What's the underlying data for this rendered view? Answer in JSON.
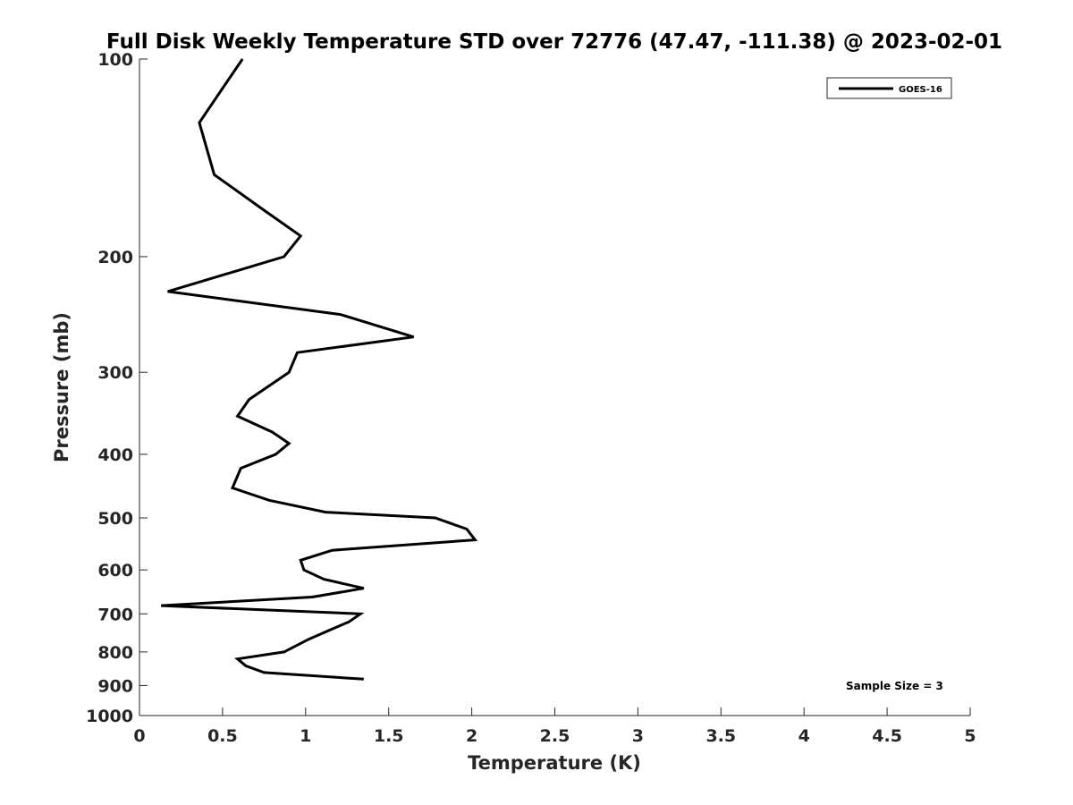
{
  "chart_data": {
    "type": "line",
    "title": "Full Disk Weekly Temperature STD over 72776 (47.47, -111.38) @ 2023-02-01",
    "xlabel": "Temperature (K)",
    "ylabel": "Pressure (mb)",
    "xlim": [
      0,
      5
    ],
    "ylim": [
      100,
      1000
    ],
    "y_scale": "log",
    "y_reversed": true,
    "grid": false,
    "x_ticks": [
      "0",
      "0.5",
      "1",
      "1.5",
      "2",
      "2.5",
      "3",
      "3.5",
      "4",
      "4.5",
      "5"
    ],
    "y_ticks": [
      "100",
      "200",
      "300",
      "400",
      "500",
      "600",
      "700",
      "800",
      "900",
      "1000"
    ],
    "legend_position": "top-right",
    "series": [
      {
        "name": "GOES-16",
        "color": "#000000",
        "x": [
          0.62,
          0.36,
          0.45,
          0.75,
          0.97,
          0.87,
          0.17,
          1.21,
          1.65,
          0.95,
          0.9,
          0.66,
          0.59,
          0.8,
          0.9,
          0.82,
          0.61,
          0.56,
          0.78,
          1.12,
          1.78,
          1.97,
          2.02,
          1.16,
          0.97,
          0.99,
          1.11,
          1.35,
          1.04,
          0.13,
          1.33,
          1.26,
          1.15,
          1.02,
          0.87,
          0.59,
          0.64,
          0.75,
          1.35
        ],
        "y": [
          100,
          125,
          150,
          170,
          186,
          200,
          226,
          245,
          265,
          280,
          300,
          330,
          350,
          370,
          385,
          400,
          420,
          450,
          470,
          490,
          500,
          520,
          540,
          560,
          580,
          600,
          620,
          640,
          660,
          680,
          700,
          720,
          740,
          765,
          800,
          820,
          840,
          860,
          880
        ]
      }
    ],
    "annotations": [
      "Sample Size = 3"
    ]
  }
}
